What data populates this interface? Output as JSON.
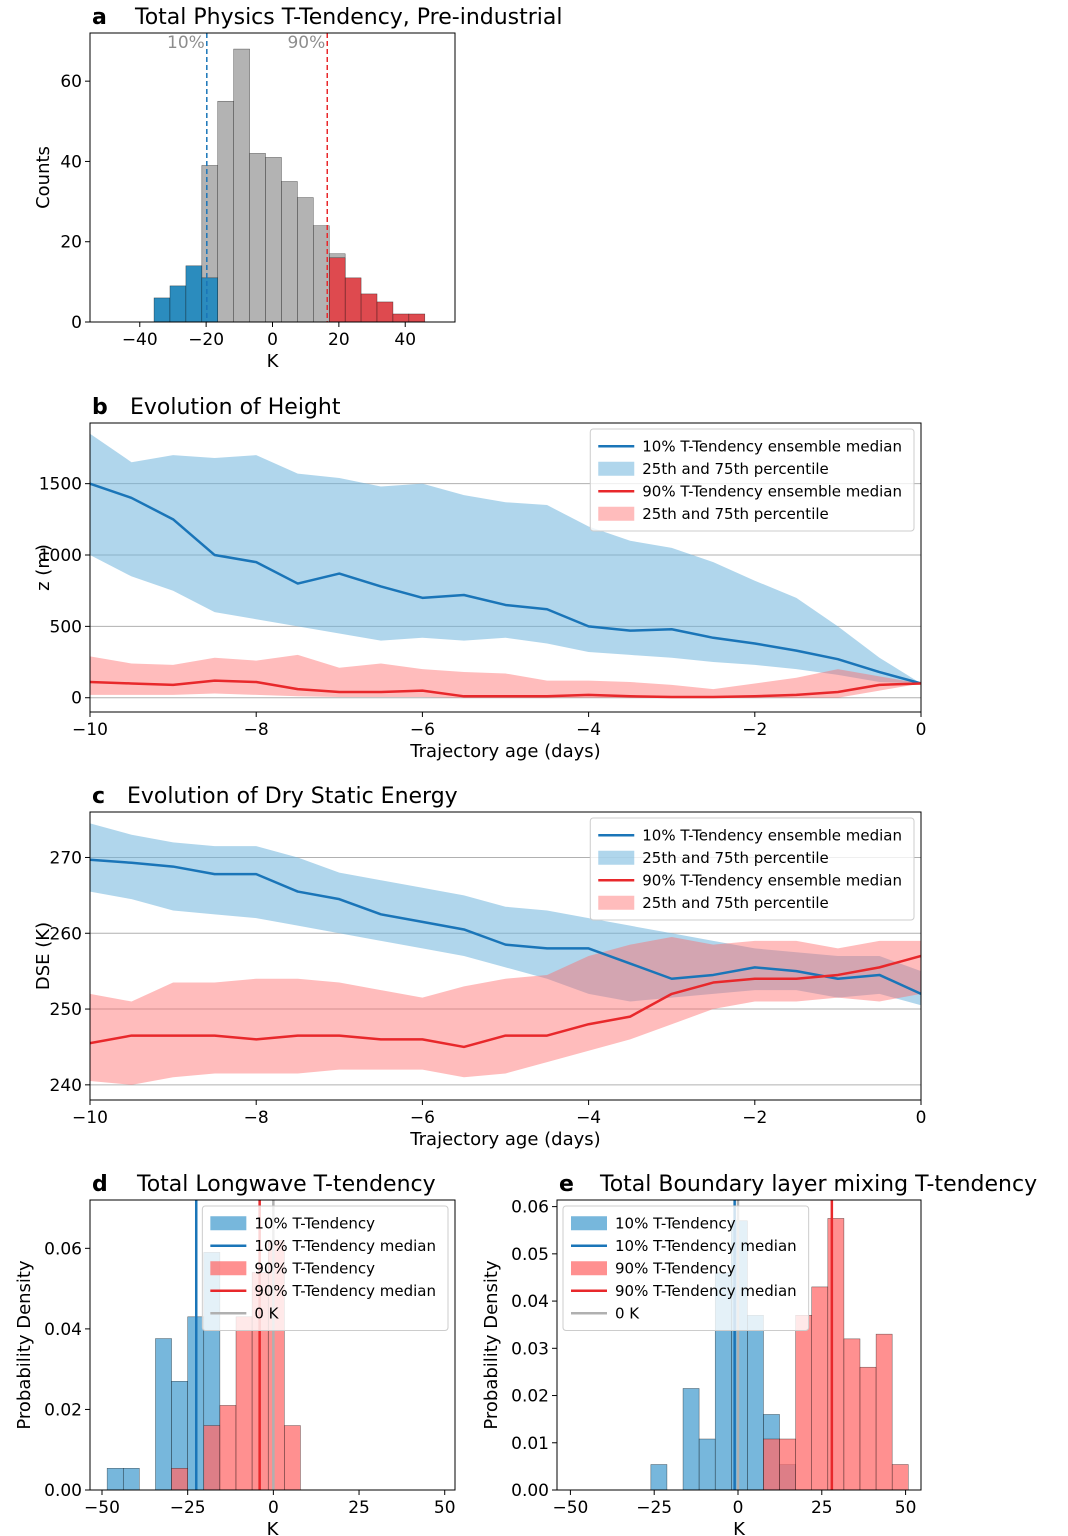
{
  "chart_data": [
    {
      "type": "histogram",
      "label": "a",
      "title": "Total Physics T-Tendency, Pre-industrial",
      "xlabel": "K",
      "ylabel": "Counts",
      "xlim": [
        -55,
        55
      ],
      "ylim": [
        0,
        72
      ],
      "xticks": [
        {
          "value": -40,
          "label": "−40"
        },
        {
          "value": -20,
          "label": "−20"
        },
        0,
        20,
        40
      ],
      "yticks": [
        0,
        20,
        40,
        60
      ],
      "bins": [
        -35.7,
        -30.9,
        -26.1,
        -21.3,
        -16.5,
        -11.7,
        -6.9,
        -2.1,
        2.7,
        7.5,
        12.3,
        17.1,
        21.9,
        26.7,
        31.5,
        36.3,
        41.1,
        45.9
      ],
      "series": [
        {
          "color": "#b3b3b3",
          "values": [
            0,
            0,
            0,
            39,
            55,
            68,
            42,
            41,
            35,
            31,
            24,
            17,
            0,
            0,
            0,
            0,
            0
          ]
        },
        {
          "color": "#2b8cbe",
          "values": [
            6,
            9,
            14,
            11,
            0,
            0,
            0,
            0,
            0,
            0,
            0,
            0,
            0,
            0,
            0,
            0,
            0
          ]
        },
        {
          "color": "#de4a4f",
          "values": [
            0,
            0,
            0,
            0,
            0,
            0,
            0,
            0,
            0,
            0,
            0,
            16,
            11,
            7,
            5,
            2,
            2
          ]
        },
        {
          "color": "#1a75b8",
          "x": -19.8,
          "dash": true,
          "text": "10%"
        },
        {
          "color": "#e8282b",
          "x": 16.5,
          "dash": true,
          "text": "90%"
        }
      ]
    },
    {
      "type": "line",
      "label": "b",
      "title": "Evolution of Height",
      "xlabel": "Trajectory age (days)",
      "ylabel": "z (m)",
      "xlim": [
        -10,
        0
      ],
      "ylim": [
        -100,
        1925
      ],
      "grid": "y",
      "legend": "upper right",
      "xticks": [
        {
          "value": -10,
          "label": "−10"
        },
        {
          "value": -8,
          "label": "−8"
        },
        {
          "value": -6,
          "label": "−6"
        },
        {
          "value": -4,
          "label": "−4"
        },
        {
          "value": -2,
          "label": "−2"
        },
        0
      ],
      "yticks": [
        0,
        500,
        1000,
        1500
      ],
      "x": [
        -10,
        -9.5,
        -9,
        -8.5,
        -8,
        -7.5,
        -7,
        -6.5,
        -6,
        -5.5,
        -5,
        -4.5,
        -4,
        -3.5,
        -3,
        -2.5,
        -2,
        -1.5,
        -1,
        -0.5,
        0
      ],
      "series": [
        {
          "name": "10% T-Tendency ensemble median",
          "color": "#1a75b8",
          "values": [
            1500,
            1400,
            1250,
            1000,
            950,
            800,
            870,
            780,
            700,
            720,
            650,
            620,
            500,
            470,
            480,
            420,
            380,
            330,
            270,
            180,
            100
          ]
        },
        {
          "name": "25th and 75th percentile",
          "color": "#6fb5dc",
          "alpha": 0.55,
          "lower": [
            1000,
            850,
            750,
            600,
            550,
            500,
            450,
            400,
            420,
            400,
            420,
            380,
            320,
            300,
            280,
            250,
            230,
            200,
            160,
            110,
            100
          ],
          "upper": [
            1850,
            1650,
            1700,
            1680,
            1700,
            1570,
            1540,
            1480,
            1500,
            1420,
            1370,
            1350,
            1200,
            1100,
            1050,
            950,
            820,
            700,
            500,
            280,
            100
          ]
        },
        {
          "name": "90% T-Tendency ensemble median",
          "color": "#e8282b",
          "values": [
            110,
            100,
            90,
            120,
            110,
            60,
            40,
            40,
            50,
            10,
            10,
            10,
            20,
            10,
            5,
            5,
            10,
            20,
            40,
            90,
            100
          ]
        },
        {
          "name": "25th and 75th percentile",
          "color": "#ff6b6b",
          "alpha": 0.45,
          "lower": [
            20,
            20,
            20,
            30,
            20,
            10,
            5,
            5,
            5,
            0,
            0,
            0,
            0,
            0,
            0,
            0,
            0,
            0,
            0,
            50,
            100
          ],
          "upper": [
            290,
            240,
            230,
            280,
            260,
            300,
            210,
            240,
            200,
            180,
            170,
            120,
            120,
            110,
            90,
            60,
            100,
            140,
            200,
            150,
            100
          ]
        }
      ]
    },
    {
      "type": "line",
      "label": "c",
      "title": "Evolution of Dry Static Energy",
      "xlabel": "Trajectory age (days)",
      "ylabel": "DSE (K)",
      "xlim": [
        -10,
        0
      ],
      "ylim": [
        238,
        276
      ],
      "grid": "y",
      "legend": "upper right",
      "xticks": [
        {
          "value": -10,
          "label": "−10"
        },
        {
          "value": -8,
          "label": "−8"
        },
        {
          "value": -6,
          "label": "−6"
        },
        {
          "value": -4,
          "label": "−4"
        },
        {
          "value": -2,
          "label": "−2"
        },
        0
      ],
      "yticks": [
        240,
        250,
        260,
        270
      ],
      "x": [
        -10,
        -9.5,
        -9,
        -8.5,
        -8,
        -7.5,
        -7,
        -6.5,
        -6,
        -5.5,
        -5,
        -4.5,
        -4,
        -3.5,
        -3,
        -2.5,
        -2,
        -1.5,
        -1,
        -0.5,
        0
      ],
      "series": [
        {
          "name": "10% T-Tendency ensemble median",
          "color": "#1a75b8",
          "values": [
            269.7,
            269.3,
            268.8,
            267.8,
            267.8,
            265.5,
            264.5,
            262.5,
            261.5,
            260.5,
            258.5,
            258,
            258,
            256,
            254,
            254.5,
            255.5,
            255,
            254,
            254.5,
            252
          ]
        },
        {
          "name": "25th and 75th percentile",
          "color": "#6fb5dc",
          "alpha": 0.55,
          "lower": [
            265.5,
            264.5,
            263,
            262.5,
            262,
            261,
            260,
            259,
            258,
            257,
            255.5,
            254,
            252,
            251,
            251.5,
            252,
            252.5,
            252.5,
            251.5,
            252,
            250.5
          ],
          "upper": [
            274.5,
            273,
            272,
            271.5,
            271.5,
            270,
            268,
            267,
            266,
            265,
            263.5,
            263,
            262,
            261,
            260,
            259,
            258,
            257.5,
            257,
            257,
            255
          ]
        },
        {
          "name": "90% T-Tendency ensemble median",
          "color": "#e8282b",
          "values": [
            245.5,
            246.5,
            246.5,
            246.5,
            246,
            246.5,
            246.5,
            246,
            246,
            245,
            246.5,
            246.5,
            248,
            249,
            252,
            253.5,
            254,
            254,
            254.5,
            255.5,
            257
          ]
        },
        {
          "name": "25th and 75th percentile",
          "color": "#ff6b6b",
          "alpha": 0.45,
          "lower": [
            240.5,
            240,
            241,
            241.5,
            241.5,
            241.5,
            242,
            242,
            242,
            241,
            241.5,
            243,
            244.5,
            246,
            248,
            250,
            251,
            251,
            251.5,
            251,
            252
          ],
          "upper": [
            252,
            251,
            253.5,
            253.5,
            254,
            254,
            253.5,
            252.5,
            251.5,
            253,
            254,
            254.5,
            257,
            258.5,
            259.5,
            258.5,
            259,
            259,
            258,
            259,
            259
          ]
        }
      ]
    },
    {
      "type": "histogram",
      "label": "d",
      "title": "Total Longwave T-tendency",
      "xlabel": "K",
      "ylabel": "Probability Density",
      "xlim": [
        -53.5,
        53
      ],
      "ylim": [
        0,
        0.072
      ],
      "legend": "upper right",
      "xticks": [
        {
          "value": -50,
          "label": "−50"
        },
        {
          "value": -25,
          "label": "−25"
        },
        0,
        25,
        50
      ],
      "yticks": [
        {
          "value": 0,
          "label": "0.00"
        },
        {
          "value": 0.02,
          "label": "0.02"
        },
        {
          "value": 0.04,
          "label": "0.04"
        },
        {
          "value": 0.06,
          "label": "0.06"
        }
      ],
      "bins": [
        -48.5,
        -43.8,
        -39.1,
        -34.4,
        -29.7,
        -25.0,
        -20.3,
        -15.6,
        -10.9,
        -6.2,
        -1.5,
        3.2,
        7.9
      ],
      "series": [
        {
          "name": "10% T-Tendency",
          "color": "#4a9fd0",
          "alpha": 0.75,
          "values": [
            0.0054,
            0.0054,
            0,
            0.0376,
            0.027,
            0.043,
            0.059,
            0,
            0,
            0,
            0,
            0
          ]
        },
        {
          "name": "10% T-Tendency median",
          "color": "#1a75b8",
          "x": -22.5
        },
        {
          "name": "90% T-Tendency",
          "color": "#ff6b6b",
          "alpha": 0.75,
          "values": [
            0,
            0,
            0,
            0,
            0.0054,
            0,
            0.016,
            0.021,
            0.043,
            0.054,
            0.062,
            0.016
          ]
        },
        {
          "name": "90% T-Tendency median",
          "color": "#e8282b",
          "x": -4
        },
        {
          "name": "0 K",
          "color": "#b0b0b0",
          "x": 0
        }
      ]
    },
    {
      "type": "histogram",
      "label": "e",
      "title": "Total Boundary layer mixing T-tendency",
      "xlabel": "K",
      "ylabel": "Probability Density",
      "xlim": [
        -54,
        54.6
      ],
      "ylim": [
        0,
        0.0614
      ],
      "legend": "upper left",
      "xticks": [
        {
          "value": -50,
          "label": "−50"
        },
        {
          "value": -25,
          "label": "−25"
        },
        0,
        25,
        50
      ],
      "yticks": [
        {
          "value": 0,
          "label": "0.00"
        },
        {
          "value": 0.01,
          "label": "0.01"
        },
        {
          "value": 0.02,
          "label": "0.02"
        },
        {
          "value": 0.03,
          "label": "0.03"
        },
        {
          "value": 0.04,
          "label": "0.04"
        },
        {
          "value": 0.05,
          "label": "0.05"
        },
        {
          "value": 0.06,
          "label": "0.06"
        }
      ],
      "bins": [
        -26,
        -21.2,
        -16.4,
        -11.6,
        -6.8,
        -2,
        2.8,
        7.6,
        12.4,
        17.2,
        22,
        26.8,
        31.6,
        36.4,
        41.2,
        46,
        50.8
      ],
      "series": [
        {
          "name": "10% T-Tendency",
          "color": "#4a9fd0",
          "alpha": 0.75,
          "values": [
            0.0054,
            0,
            0.0215,
            0.0108,
            0.046,
            0.057,
            0.037,
            0.016,
            0.0054,
            0,
            0,
            0,
            0,
            0,
            0,
            0
          ]
        },
        {
          "name": "10% T-Tendency median",
          "color": "#1a75b8",
          "x": -1
        },
        {
          "name": "90% T-Tendency",
          "color": "#ff6b6b",
          "alpha": 0.75,
          "values": [
            0,
            0,
            0,
            0,
            0,
            0,
            0,
            0.0108,
            0.0108,
            0.037,
            0.043,
            0.0575,
            0.032,
            0.026,
            0.033,
            0.0054
          ]
        },
        {
          "name": "90% T-Tendency median",
          "color": "#e8282b",
          "x": 28
        },
        {
          "name": "0 K",
          "color": "#b0b0b0",
          "x": 0
        }
      ]
    }
  ]
}
